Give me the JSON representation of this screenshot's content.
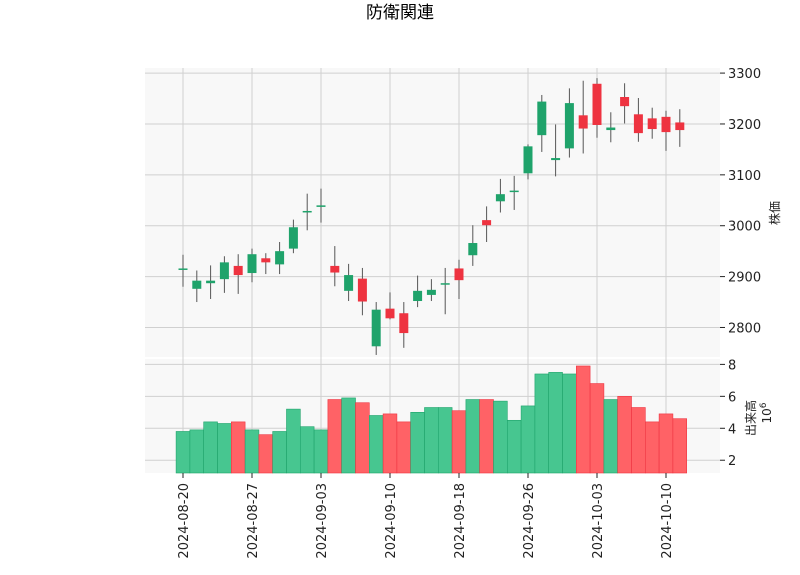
{
  "title": "防衛関連",
  "colors": {
    "up": "#1fa36b",
    "down": "#ee3340",
    "up_volume": "#47c690",
    "down_volume": "#ff6266",
    "panel_bg": "#f8f8f8",
    "grid": "#d0d0d0",
    "wick": "#555555"
  },
  "chart_data": [
    {
      "type": "candlestick",
      "panel": "price",
      "ylabel": "株価",
      "ylim": [
        2740,
        3310
      ],
      "yticks": [
        2800,
        2900,
        3000,
        3100,
        3200,
        3300
      ],
      "grid": true,
      "x_tick_labels": [
        "2024-08-20",
        "2024-08-27",
        "2024-09-03",
        "2024-09-10",
        "2024-09-18",
        "2024-09-26",
        "2024-10-03",
        "2024-10-10"
      ],
      "x_tick_index": [
        0,
        5,
        10,
        15,
        20,
        25,
        30,
        35
      ],
      "series": [
        {
          "o": 2915,
          "h": 2943,
          "l": 2880,
          "c": 2916
        },
        {
          "o": 2876,
          "h": 2912,
          "l": 2850,
          "c": 2892
        },
        {
          "o": 2887,
          "h": 2922,
          "l": 2856,
          "c": 2892
        },
        {
          "o": 2895,
          "h": 2940,
          "l": 2868,
          "c": 2928
        },
        {
          "o": 2921,
          "h": 2944,
          "l": 2866,
          "c": 2903
        },
        {
          "o": 2907,
          "h": 2955,
          "l": 2889,
          "c": 2944
        },
        {
          "o": 2936,
          "h": 2946,
          "l": 2905,
          "c": 2928
        },
        {
          "o": 2924,
          "h": 2968,
          "l": 2905,
          "c": 2950
        },
        {
          "o": 2955,
          "h": 3012,
          "l": 2946,
          "c": 2997
        },
        {
          "o": 3028,
          "h": 3063,
          "l": 2991,
          "c": 3029
        },
        {
          "o": 3037,
          "h": 3073,
          "l": 3006,
          "c": 3040
        },
        {
          "o": 2921,
          "h": 2960,
          "l": 2881,
          "c": 2908
        },
        {
          "o": 2872,
          "h": 2925,
          "l": 2852,
          "c": 2903
        },
        {
          "o": 2896,
          "h": 2917,
          "l": 2824,
          "c": 2851
        },
        {
          "o": 2763,
          "h": 2850,
          "l": 2746,
          "c": 2835
        },
        {
          "o": 2837,
          "h": 2869,
          "l": 2816,
          "c": 2818
        },
        {
          "o": 2828,
          "h": 2850,
          "l": 2760,
          "c": 2789
        },
        {
          "o": 2852,
          "h": 2902,
          "l": 2840,
          "c": 2872
        },
        {
          "o": 2864,
          "h": 2895,
          "l": 2852,
          "c": 2874
        },
        {
          "o": 2886,
          "h": 2917,
          "l": 2826,
          "c": 2887
        },
        {
          "o": 2916,
          "h": 2933,
          "l": 2856,
          "c": 2893
        },
        {
          "o": 2942,
          "h": 3001,
          "l": 2921,
          "c": 2966
        },
        {
          "o": 3011,
          "h": 3038,
          "l": 2968,
          "c": 3001
        },
        {
          "o": 3048,
          "h": 3092,
          "l": 3026,
          "c": 3062
        },
        {
          "o": 3067,
          "h": 3098,
          "l": 3031,
          "c": 3069
        },
        {
          "o": 3103,
          "h": 3160,
          "l": 3091,
          "c": 3156
        },
        {
          "o": 3178,
          "h": 3257,
          "l": 3145,
          "c": 3244
        },
        {
          "o": 3129,
          "h": 3199,
          "l": 3097,
          "c": 3133
        },
        {
          "o": 3152,
          "h": 3270,
          "l": 3134,
          "c": 3241
        },
        {
          "o": 3217,
          "h": 3285,
          "l": 3142,
          "c": 3191
        },
        {
          "o": 3279,
          "h": 3290,
          "l": 3173,
          "c": 3198
        },
        {
          "o": 3188,
          "h": 3223,
          "l": 3164,
          "c": 3193
        },
        {
          "o": 3253,
          "h": 3280,
          "l": 3201,
          "c": 3235
        },
        {
          "o": 3219,
          "h": 3251,
          "l": 3165,
          "c": 3182
        },
        {
          "o": 3211,
          "h": 3232,
          "l": 3171,
          "c": 3190
        },
        {
          "o": 3214,
          "h": 3226,
          "l": 3147,
          "c": 3184
        },
        {
          "o": 3203,
          "h": 3229,
          "l": 3155,
          "c": 3188
        }
      ]
    },
    {
      "type": "bar",
      "panel": "volume",
      "ylabel": "出来高",
      "scale_label": "10^6",
      "ylim": [
        1.2,
        8.4
      ],
      "yticks": [
        2,
        4,
        6,
        8
      ],
      "grid": true,
      "values": [
        3.8,
        3.9,
        4.4,
        4.3,
        4.4,
        3.9,
        3.6,
        3.8,
        5.2,
        4.1,
        3.9,
        5.8,
        5.9,
        5.6,
        4.8,
        4.9,
        4.4,
        5.0,
        5.3,
        5.3,
        5.1,
        5.8,
        5.8,
        5.7,
        4.5,
        5.4,
        7.4,
        7.5,
        7.4,
        7.9,
        6.8,
        5.8,
        6.0,
        5.3,
        4.4,
        4.9,
        4.6
      ]
    }
  ]
}
